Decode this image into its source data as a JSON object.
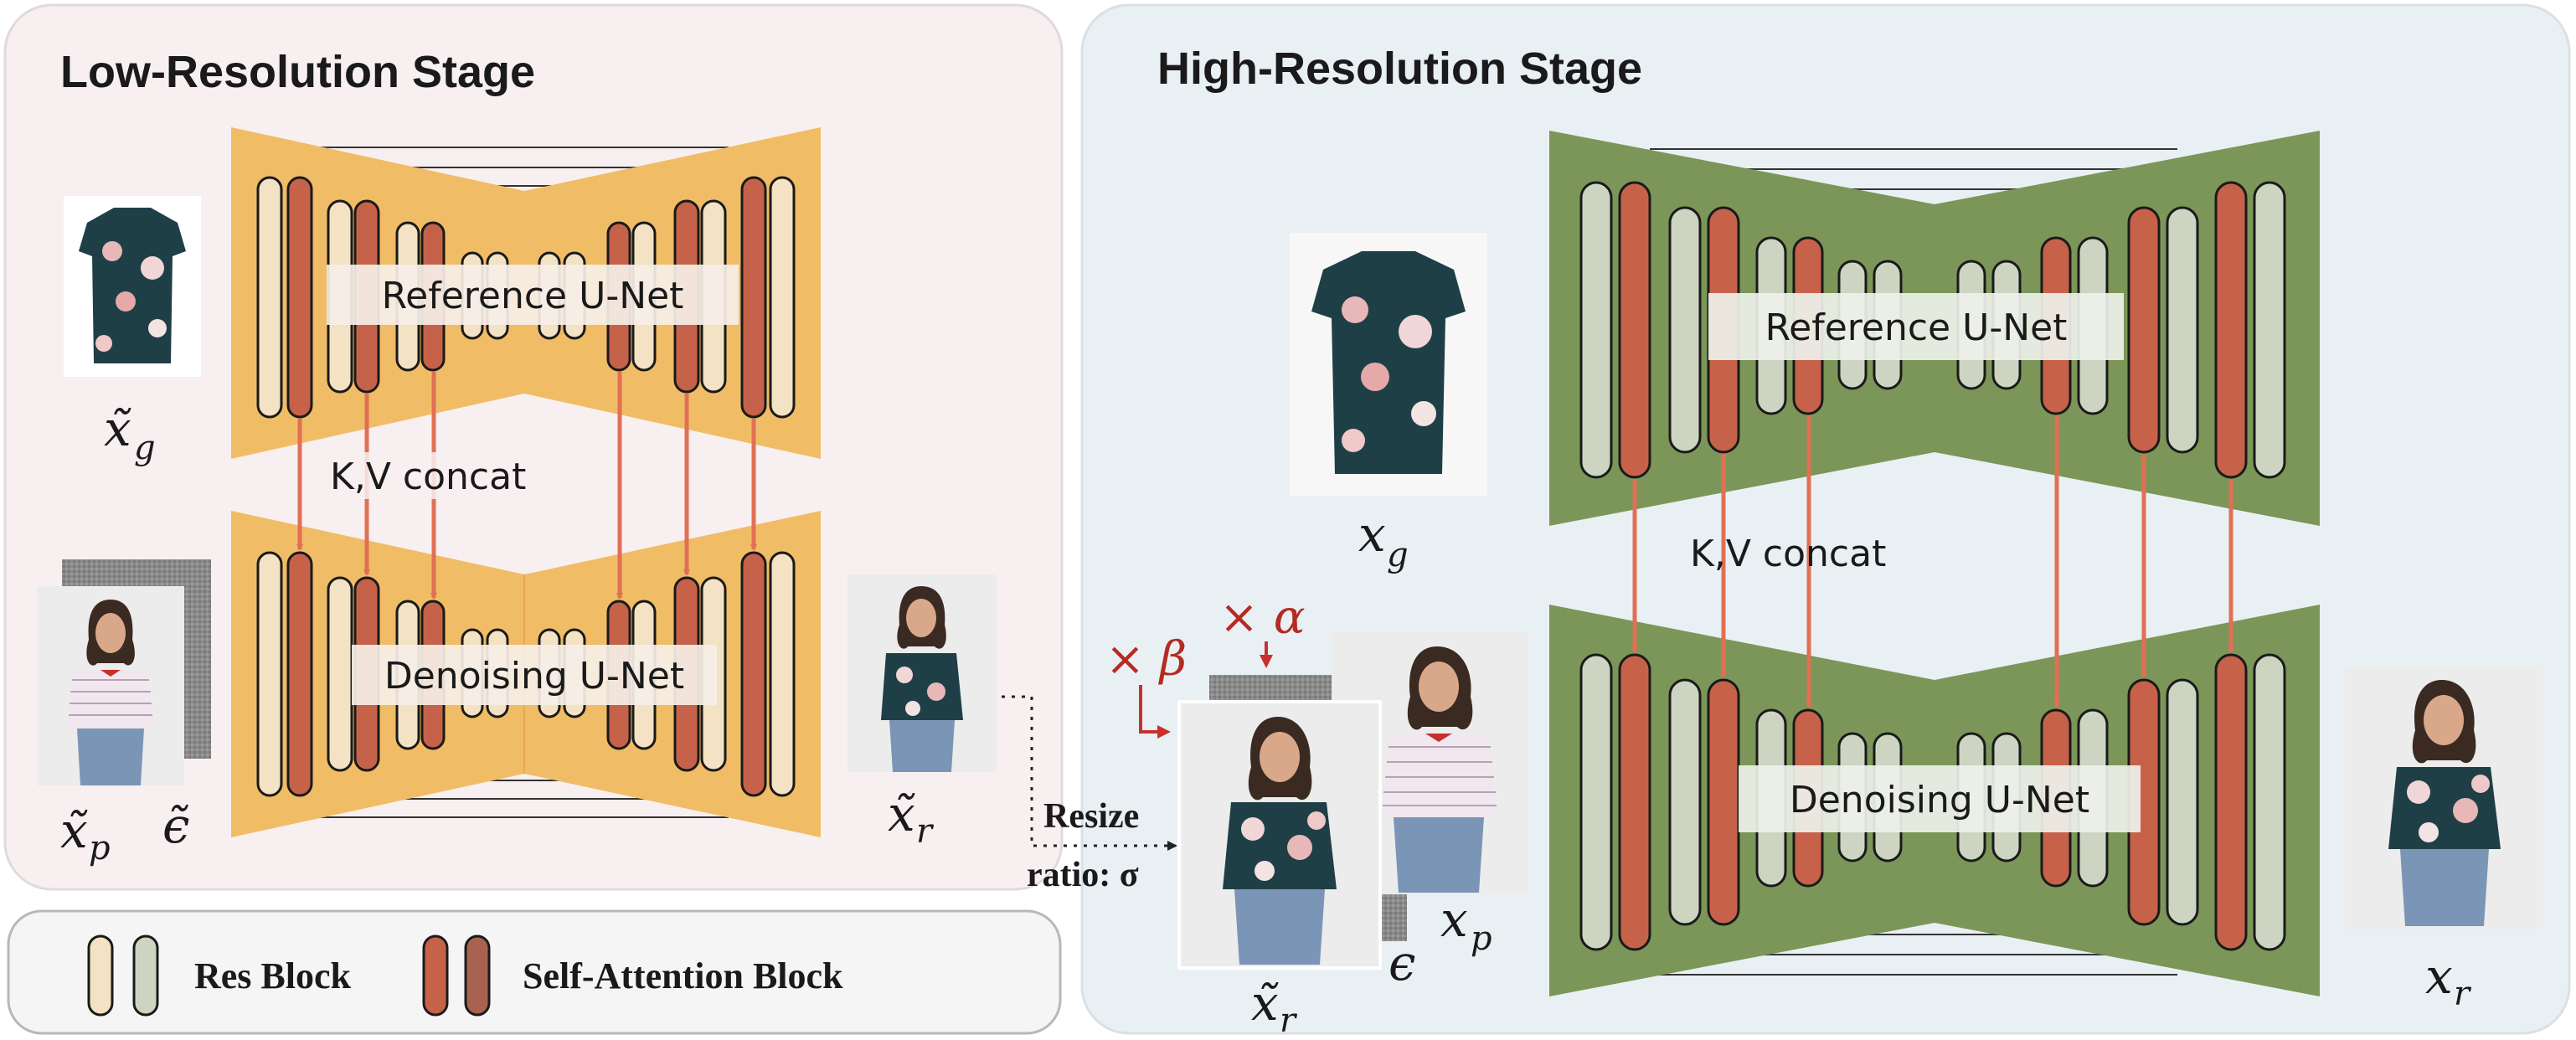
{
  "low_stage": {
    "title": "Low-Resolution Stage",
    "reference_label": "Reference U-Net",
    "denoising_label": "Denoising U-Net",
    "kv_label": "K,V concat"
  },
  "high_stage": {
    "title": "High-Resolution Stage",
    "reference_label": "Reference U-Net",
    "denoising_label": "Denoising U-Net",
    "kv_label": "K,V concat"
  },
  "symbols": {
    "low_garment": {
      "base": "x̃",
      "sub": "g"
    },
    "low_person": {
      "base": "x̃",
      "sub": "p"
    },
    "low_noise": {
      "base": "ϵ̃",
      "sub": ""
    },
    "low_result": {
      "base": "x̃",
      "sub": "r"
    },
    "high_garment": {
      "base": "x",
      "sub": "g"
    },
    "high_person": {
      "base": "x",
      "sub": "p"
    },
    "high_noise": {
      "base": "ϵ",
      "sub": ""
    },
    "high_lowres_input": {
      "base": "x̃",
      "sub": "r"
    },
    "high_result": {
      "base": "x",
      "sub": "r"
    },
    "alpha": "× α",
    "beta": "× β"
  },
  "resize": {
    "line1": "Resize",
    "line2": "ratio: σ"
  },
  "legend": {
    "res_block": "Res Block",
    "attn_block": "Self-Attention Block"
  },
  "colors": {
    "low_panel": "#f8eff0",
    "high_panel": "#e9f0f4",
    "low_unet": "#f0bd66",
    "high_unet": "#7b9658",
    "res_block": "#f3e2c3",
    "res_block_alt": "#cdd5c2",
    "attn_block": "#c7624a",
    "attn_block_alt": "#a86350",
    "arrow": "#e07055",
    "scale_text": "#b52a22"
  }
}
